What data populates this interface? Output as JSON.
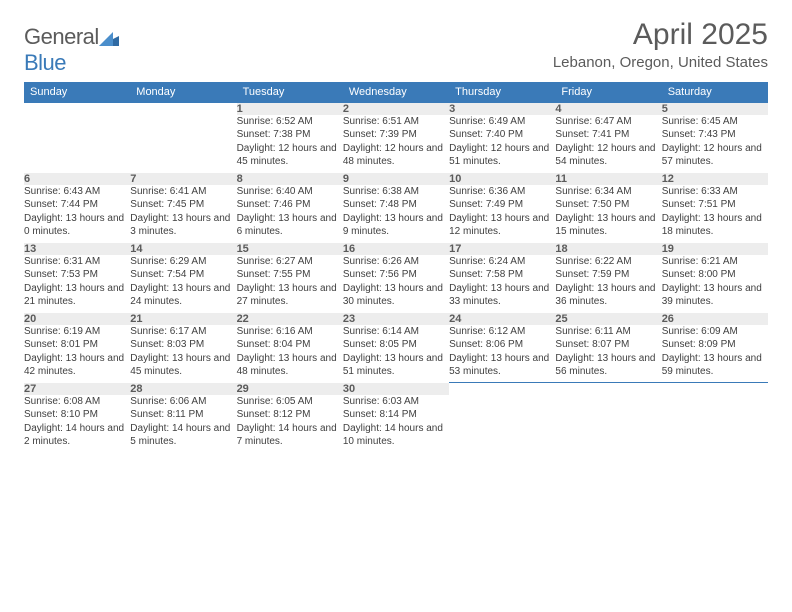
{
  "brand": {
    "name_a": "General",
    "name_b": "Blue"
  },
  "title": "April 2025",
  "location": "Lebanon, Oregon, United States",
  "colors": {
    "header_bg": "#3a7ab8",
    "header_fg": "#ffffff",
    "daynum_bg": "#ededed",
    "text": "#5b5b5b",
    "rule": "#3a7ab8"
  },
  "daysOfWeek": [
    "Sunday",
    "Monday",
    "Tuesday",
    "Wednesday",
    "Thursday",
    "Friday",
    "Saturday"
  ],
  "weeks": [
    [
      null,
      null,
      {
        "n": "1",
        "sr": "6:52 AM",
        "ss": "7:38 PM",
        "dl": "12 hours and 45 minutes."
      },
      {
        "n": "2",
        "sr": "6:51 AM",
        "ss": "7:39 PM",
        "dl": "12 hours and 48 minutes."
      },
      {
        "n": "3",
        "sr": "6:49 AM",
        "ss": "7:40 PM",
        "dl": "12 hours and 51 minutes."
      },
      {
        "n": "4",
        "sr": "6:47 AM",
        "ss": "7:41 PM",
        "dl": "12 hours and 54 minutes."
      },
      {
        "n": "5",
        "sr": "6:45 AM",
        "ss": "7:43 PM",
        "dl": "12 hours and 57 minutes."
      }
    ],
    [
      {
        "n": "6",
        "sr": "6:43 AM",
        "ss": "7:44 PM",
        "dl": "13 hours and 0 minutes."
      },
      {
        "n": "7",
        "sr": "6:41 AM",
        "ss": "7:45 PM",
        "dl": "13 hours and 3 minutes."
      },
      {
        "n": "8",
        "sr": "6:40 AM",
        "ss": "7:46 PM",
        "dl": "13 hours and 6 minutes."
      },
      {
        "n": "9",
        "sr": "6:38 AM",
        "ss": "7:48 PM",
        "dl": "13 hours and 9 minutes."
      },
      {
        "n": "10",
        "sr": "6:36 AM",
        "ss": "7:49 PM",
        "dl": "13 hours and 12 minutes."
      },
      {
        "n": "11",
        "sr": "6:34 AM",
        "ss": "7:50 PM",
        "dl": "13 hours and 15 minutes."
      },
      {
        "n": "12",
        "sr": "6:33 AM",
        "ss": "7:51 PM",
        "dl": "13 hours and 18 minutes."
      }
    ],
    [
      {
        "n": "13",
        "sr": "6:31 AM",
        "ss": "7:53 PM",
        "dl": "13 hours and 21 minutes."
      },
      {
        "n": "14",
        "sr": "6:29 AM",
        "ss": "7:54 PM",
        "dl": "13 hours and 24 minutes."
      },
      {
        "n": "15",
        "sr": "6:27 AM",
        "ss": "7:55 PM",
        "dl": "13 hours and 27 minutes."
      },
      {
        "n": "16",
        "sr": "6:26 AM",
        "ss": "7:56 PM",
        "dl": "13 hours and 30 minutes."
      },
      {
        "n": "17",
        "sr": "6:24 AM",
        "ss": "7:58 PM",
        "dl": "13 hours and 33 minutes."
      },
      {
        "n": "18",
        "sr": "6:22 AM",
        "ss": "7:59 PM",
        "dl": "13 hours and 36 minutes."
      },
      {
        "n": "19",
        "sr": "6:21 AM",
        "ss": "8:00 PM",
        "dl": "13 hours and 39 minutes."
      }
    ],
    [
      {
        "n": "20",
        "sr": "6:19 AM",
        "ss": "8:01 PM",
        "dl": "13 hours and 42 minutes."
      },
      {
        "n": "21",
        "sr": "6:17 AM",
        "ss": "8:03 PM",
        "dl": "13 hours and 45 minutes."
      },
      {
        "n": "22",
        "sr": "6:16 AM",
        "ss": "8:04 PM",
        "dl": "13 hours and 48 minutes."
      },
      {
        "n": "23",
        "sr": "6:14 AM",
        "ss": "8:05 PM",
        "dl": "13 hours and 51 minutes."
      },
      {
        "n": "24",
        "sr": "6:12 AM",
        "ss": "8:06 PM",
        "dl": "13 hours and 53 minutes."
      },
      {
        "n": "25",
        "sr": "6:11 AM",
        "ss": "8:07 PM",
        "dl": "13 hours and 56 minutes."
      },
      {
        "n": "26",
        "sr": "6:09 AM",
        "ss": "8:09 PM",
        "dl": "13 hours and 59 minutes."
      }
    ],
    [
      {
        "n": "27",
        "sr": "6:08 AM",
        "ss": "8:10 PM",
        "dl": "14 hours and 2 minutes."
      },
      {
        "n": "28",
        "sr": "6:06 AM",
        "ss": "8:11 PM",
        "dl": "14 hours and 5 minutes."
      },
      {
        "n": "29",
        "sr": "6:05 AM",
        "ss": "8:12 PM",
        "dl": "14 hours and 7 minutes."
      },
      {
        "n": "30",
        "sr": "6:03 AM",
        "ss": "8:14 PM",
        "dl": "14 hours and 10 minutes."
      },
      null,
      null,
      null
    ]
  ],
  "labels": {
    "sunrise": "Sunrise: ",
    "sunset": "Sunset: ",
    "daylight": "Daylight: "
  }
}
